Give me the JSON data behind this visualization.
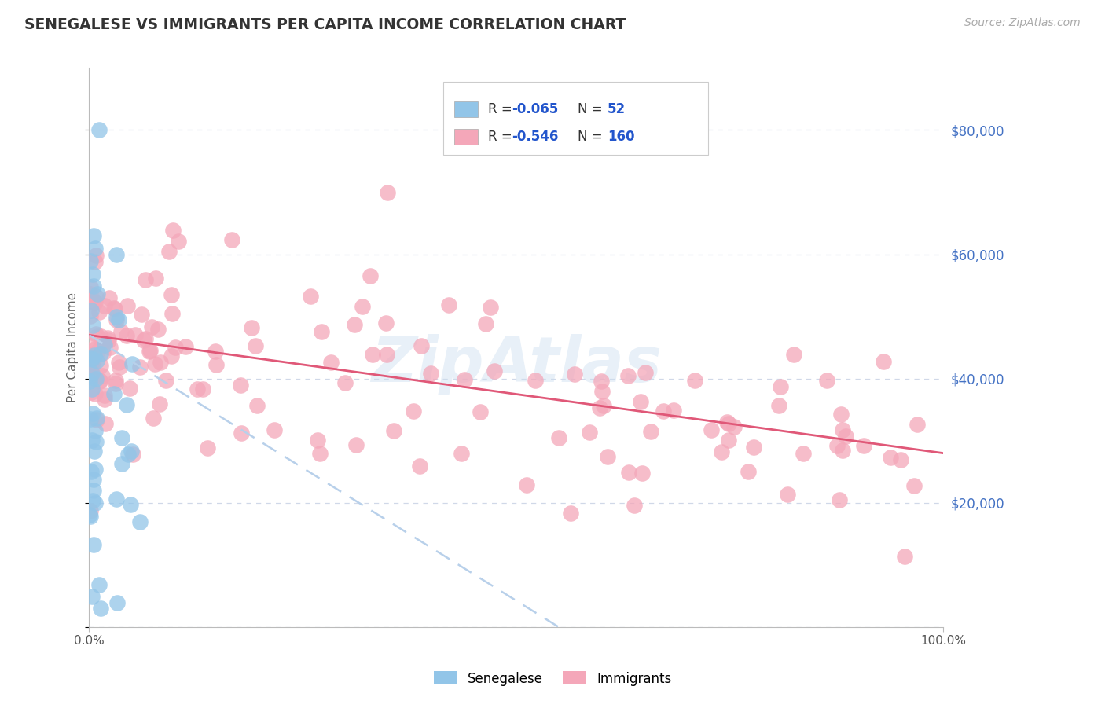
{
  "title": "SENEGALESE VS IMMIGRANTS PER CAPITA INCOME CORRELATION CHART",
  "source_text": "Source: ZipAtlas.com",
  "ylabel": "Per Capita Income",
  "watermark": "ZipAtlas",
  "xlim": [
    0.0,
    1.0
  ],
  "ylim": [
    0,
    90000
  ],
  "yticks": [
    0,
    20000,
    40000,
    60000,
    80000
  ],
  "xtick_positions": [
    0.0,
    1.0
  ],
  "xtick_labels": [
    "0.0%",
    "100.0%"
  ],
  "ytick_labels": [
    "",
    "$20,000",
    "$40,000",
    "$60,000",
    "$80,000"
  ],
  "senegalese": {
    "R": -0.065,
    "N": 52,
    "color": "#92c5e8",
    "line_color": "#4472c4",
    "line_style": "dashed"
  },
  "immigrants": {
    "R": -0.546,
    "N": 160,
    "color": "#f4a7b9",
    "line_color": "#e05878",
    "line_style": "solid"
  },
  "background_color": "#ffffff",
  "grid_color": "#d0d8e8",
  "title_color": "#333333",
  "axis_label_color": "#666666",
  "right_tick_color": "#4472c4",
  "source_color": "#aaaaaa",
  "legend_text_color": "#333333",
  "legend_val_color": "#2255cc"
}
